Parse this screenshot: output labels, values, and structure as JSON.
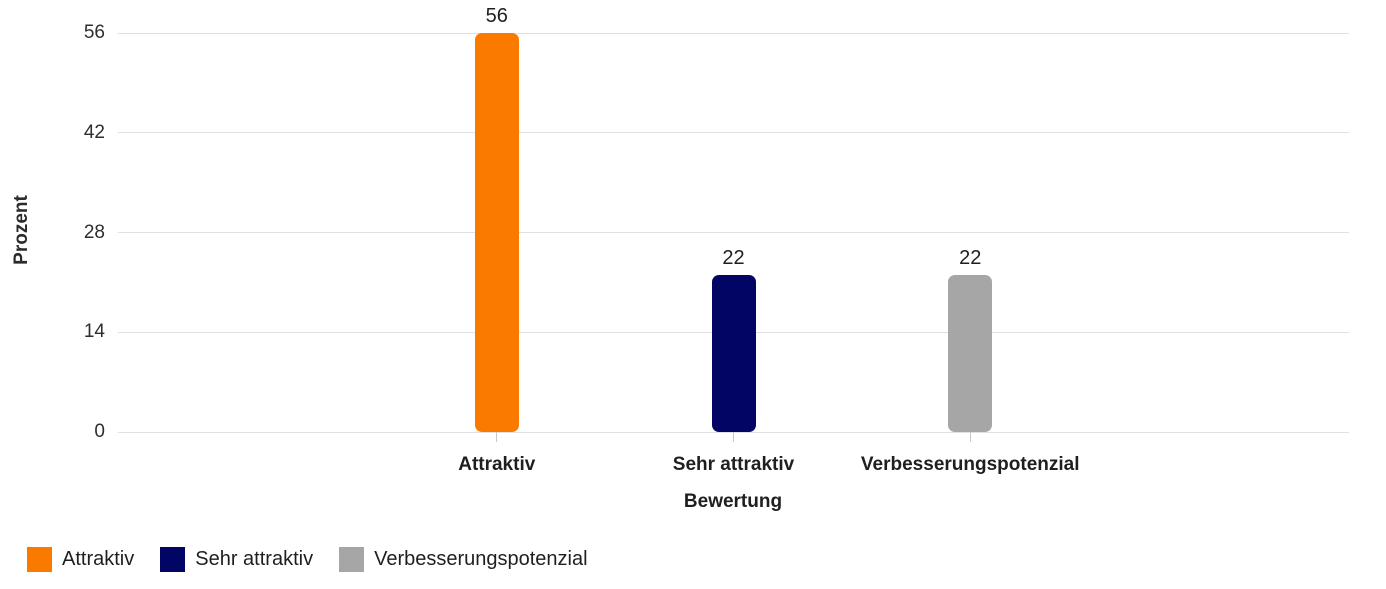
{
  "chart_data": {
    "type": "bar",
    "title": "",
    "categories": [
      "Attraktiv",
      "Sehr attraktiv",
      "Verbesserungspotenzial"
    ],
    "values": [
      56,
      22,
      22
    ],
    "bar_colors": [
      "#FA7A00",
      "#020564",
      "#A6A6A6"
    ],
    "xlabel": "Bewertung",
    "ylabel": "Prozent",
    "yticks": [
      0,
      14,
      28,
      42,
      56
    ],
    "ylim": [
      0,
      56
    ],
    "grid": "horizontal",
    "data_labels_shown": true,
    "legend": {
      "position": "bottom-left",
      "entries": [
        {
          "label": "Attraktiv",
          "color": "#FA7A00"
        },
        {
          "label": "Sehr attraktiv",
          "color": "#020564"
        },
        {
          "label": "Verbesserungspotenzial",
          "color": "#A6A6A6"
        }
      ]
    }
  },
  "colors": {
    "background": "#FFFFFF",
    "gridline": "#E0E0E0",
    "tick_mark": "#C8C8C8",
    "axis_text": "#2E2E2E",
    "label_text": "#1F1F1F"
  }
}
